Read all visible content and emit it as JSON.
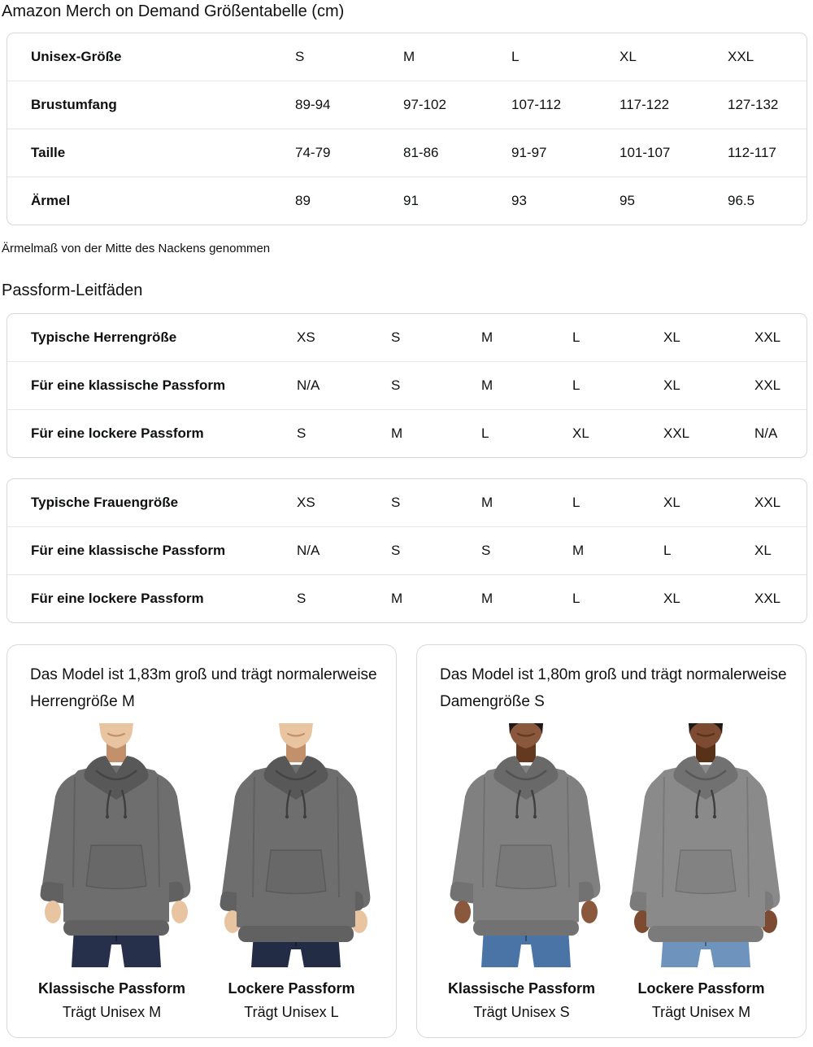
{
  "page": {
    "title": "Amazon Merch on Demand Größentabelle (cm)"
  },
  "size_table": {
    "rows": [
      {
        "label": "Unisex-Größe",
        "values": [
          "S",
          "M",
          "L",
          "XL",
          "XXL"
        ]
      },
      {
        "label": "Brustumfang",
        "values": [
          "89-94",
          "97-102",
          "107-112",
          "117-122",
          "127-132"
        ]
      },
      {
        "label": "Taille",
        "values": [
          "74-79",
          "81-86",
          "91-97",
          "101-107",
          "112-117"
        ]
      },
      {
        "label": "Ärmel",
        "values": [
          "89",
          "91",
          "93",
          "95",
          "96.5"
        ]
      }
    ]
  },
  "note": "Ärmelmaß von der Mitte des Nackens genommen",
  "fit_guides": {
    "heading": "Passform-Leitfäden",
    "mens_table": {
      "rows": [
        {
          "label": "Typische Herrengröße",
          "values": [
            "XS",
            "S",
            "M",
            "L",
            "XL",
            "XXL"
          ]
        },
        {
          "label": "Für eine klassische Passform",
          "values": [
            "N/A",
            "S",
            "M",
            "L",
            "XL",
            "XXL"
          ]
        },
        {
          "label": "Für eine lockere Passform",
          "values": [
            "S",
            "M",
            "L",
            "XL",
            "XXL",
            "N/A"
          ]
        }
      ]
    },
    "womens_table": {
      "rows": [
        {
          "label": "Typische Frauengröße",
          "values": [
            "XS",
            "S",
            "M",
            "L",
            "XL",
            "XXL"
          ]
        },
        {
          "label": "Für eine klassische Passform",
          "values": [
            "N/A",
            "S",
            "S",
            "M",
            "L",
            "XL"
          ]
        },
        {
          "label": "Für eine lockere Passform",
          "values": [
            "S",
            "M",
            "M",
            "L",
            "XL",
            "XXL"
          ]
        }
      ]
    }
  },
  "model_cards": [
    {
      "description": "Das Model ist 1,83m groß und trägt normalerweise Herrengröße M",
      "figures": [
        {
          "fit_label": "Klassische Passform",
          "size_label": "Trägt Unisex M",
          "variant": "classic",
          "skin": "#e9c4a1",
          "skin_shade": "#c2916c",
          "hoodie": "#6e6e6e",
          "hoodie_dark": "#616161",
          "hood": "#585858",
          "jeans": "#26304a",
          "hair": null
        },
        {
          "fit_label": "Lockere Passform",
          "size_label": "Trägt Unisex L",
          "variant": "loose",
          "skin": "#e9c4a1",
          "skin_shade": "#c2916c",
          "hoodie": "#6e6e6e",
          "hoodie_dark": "#616161",
          "hood": "#585858",
          "jeans": "#222c44",
          "hair": null
        }
      ]
    },
    {
      "description": "Das Model ist 1,80m groß und trägt normalerweise Damengröße S",
      "figures": [
        {
          "fit_label": "Klassische Passform",
          "size_label": "Trägt Unisex S",
          "variant": "classic",
          "skin": "#8a583c",
          "skin_shade": "#64391f",
          "hoodie": "#808080",
          "hoodie_dark": "#727272",
          "hood": "#696969",
          "jeans": "#4a74a6",
          "hair": "#1f1815"
        },
        {
          "fit_label": "Lockere Passform",
          "size_label": "Trägt Unisex M",
          "variant": "loose",
          "skin": "#7c4b31",
          "skin_shade": "#573218",
          "hoodie": "#8a8a8a",
          "hoodie_dark": "#7b7b7b",
          "hood": "#717171",
          "jeans": "#6e93bc",
          "hair": "#1f1815"
        }
      ]
    }
  ]
}
